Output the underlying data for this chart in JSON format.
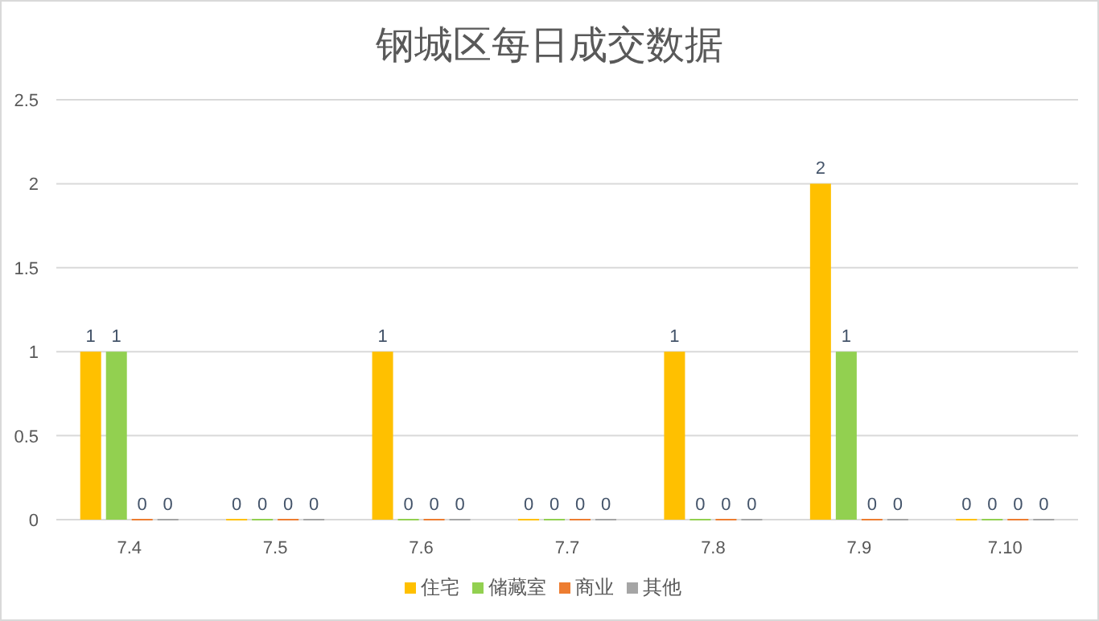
{
  "chart_data": {
    "type": "bar",
    "title": "钢城区每日成交数据",
    "categories": [
      "7.4",
      "7.5",
      "7.6",
      "7.7",
      "7.8",
      "7.9",
      "7.10"
    ],
    "series": [
      {
        "name": "住宅",
        "color": "#ffc000",
        "values": [
          1,
          0,
          1,
          0,
          1,
          2,
          0
        ]
      },
      {
        "name": "储藏室",
        "color": "#92d050",
        "values": [
          1,
          0,
          0,
          0,
          0,
          1,
          0
        ]
      },
      {
        "name": "商业",
        "color": "#ed7d31",
        "values": [
          0,
          0,
          0,
          0,
          0,
          0,
          0
        ]
      },
      {
        "name": "其他",
        "color": "#a5a5a5",
        "values": [
          0,
          0,
          0,
          0,
          0,
          0,
          0
        ]
      }
    ],
    "ylim": [
      0,
      2.5
    ],
    "yticks": [
      0,
      0.5,
      1,
      1.5,
      2,
      2.5
    ],
    "grid": "y",
    "legend": "bottom",
    "data_labels": true
  }
}
